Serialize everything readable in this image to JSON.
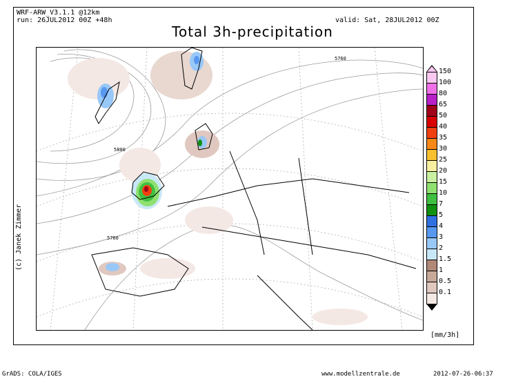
{
  "header": {
    "model": "WRF-ARW_V3.1.1 @12km",
    "run": "run: 26JUL2012 00Z +48h",
    "valid": "valid: Sat, 28JUL2012 00Z",
    "title": "Total 3h-precipitation"
  },
  "credit": "(c) Janek Zimmer",
  "contour_labels": [
    "5760",
    "5800",
    "5760"
  ],
  "legend": {
    "unit": "[mm/3h]",
    "levels": [
      {
        "label": "150",
        "color": "#f8c8f0"
      },
      {
        "label": "100",
        "color": "#f070e8"
      },
      {
        "label": "80",
        "color": "#b820c8"
      },
      {
        "label": "65",
        "color": "#a00018"
      },
      {
        "label": "50",
        "color": "#d80000"
      },
      {
        "label": "40",
        "color": "#f04010"
      },
      {
        "label": "35",
        "color": "#f88818"
      },
      {
        "label": "30",
        "color": "#f8c030"
      },
      {
        "label": "25",
        "color": "#f8f0a0"
      },
      {
        "label": "20",
        "color": "#c8f0a0"
      },
      {
        "label": "15",
        "color": "#90e070"
      },
      {
        "label": "10",
        "color": "#40c040"
      },
      {
        "label": "7",
        "color": "#109010"
      },
      {
        "label": "5",
        "color": "#3070e0"
      },
      {
        "label": "4",
        "color": "#5898f0"
      },
      {
        "label": "3",
        "color": "#98c8f8"
      },
      {
        "label": "2",
        "color": "#c8e8f8"
      },
      {
        "label": "1.5",
        "color": "#b08878"
      },
      {
        "label": "1",
        "color": "#c8a898"
      },
      {
        "label": "0.5",
        "color": "#e0c8c0"
      },
      {
        "label": "0.1",
        "color": "#f4e8e4"
      }
    ]
  },
  "footer": {
    "left": "GrADS: COLA/IGES",
    "center": "www.modellzentrale.de",
    "right": "2012-07-26-06:37"
  }
}
